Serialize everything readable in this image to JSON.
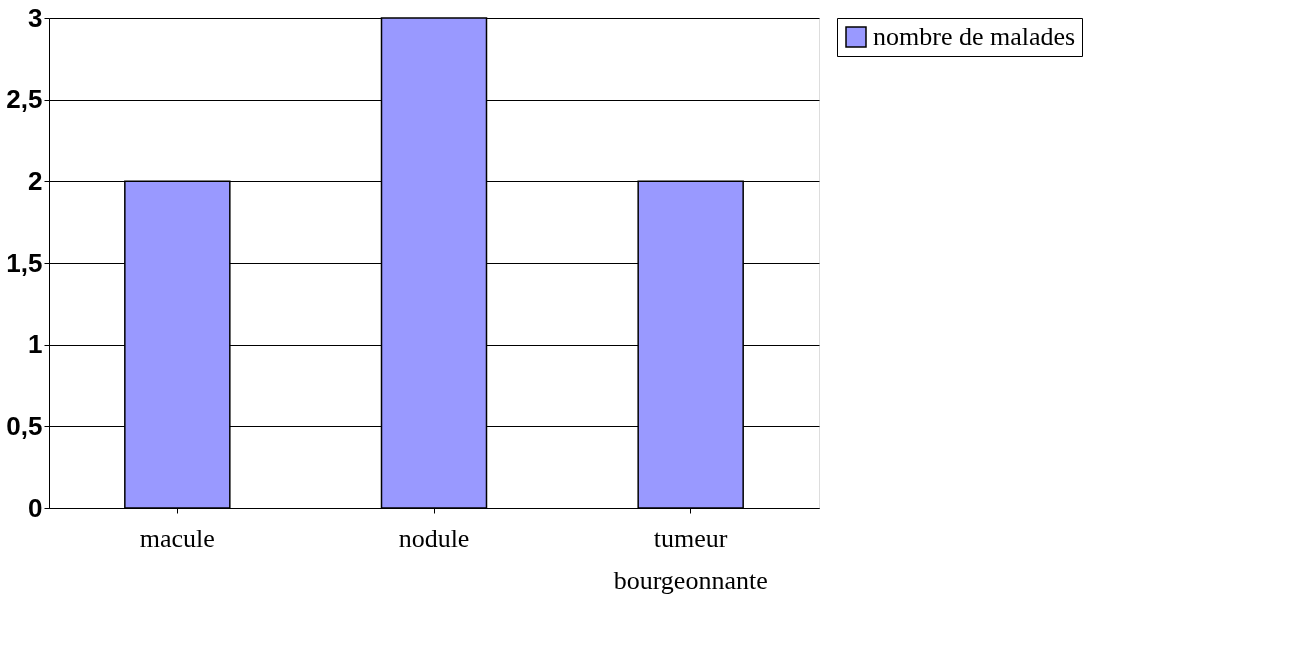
{
  "chart_data": {
    "type": "bar",
    "categories": [
      "macule",
      "nodule",
      "tumeur bourgeonnante"
    ],
    "series": [
      {
        "name": "nombre de malades",
        "color": "#9999ff",
        "values": [
          2,
          3,
          2
        ]
      }
    ],
    "ylim": [
      0,
      3
    ],
    "yticks": [
      0,
      {
        "value": 0.5,
        "label": "0,5"
      },
      1,
      {
        "value": 1.5,
        "label": "1,5"
      },
      2,
      {
        "value": 2.5,
        "label": "2,5"
      },
      3
    ],
    "grid": "y",
    "legend": "right"
  }
}
